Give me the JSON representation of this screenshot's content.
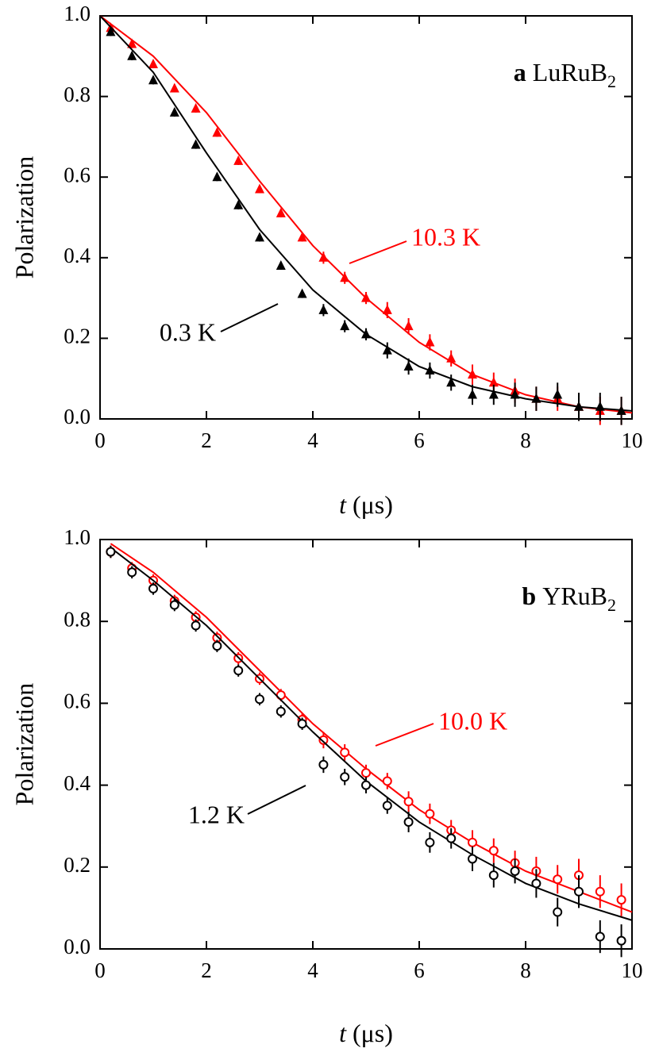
{
  "chart_data": [
    {
      "type": "scatter",
      "panel_label": "a",
      "title": "LuRuB",
      "title_subscript": "2",
      "xlabel_symbol": "t",
      "xlabel_unit": "(μs)",
      "ylabel": "Polarization",
      "marker": "triangle",
      "xlim": [
        0,
        10
      ],
      "xticks": [
        0,
        2,
        4,
        6,
        8,
        10
      ],
      "ylim": [
        0,
        1
      ],
      "yticks": [
        {
          "value": 0,
          "label": "0.0"
        },
        {
          "value": 0.2,
          "label": "0.2"
        },
        {
          "value": 0.4,
          "label": "0.4"
        },
        {
          "value": 0.6,
          "label": "0.6"
        },
        {
          "value": 0.8,
          "label": "0.8"
        },
        {
          "value": 1,
          "label": "1.0"
        }
      ],
      "x": [
        0.2,
        0.6,
        1.0,
        1.4,
        1.8,
        2.2,
        2.6,
        3.0,
        3.4,
        3.8,
        4.2,
        4.6,
        5.0,
        5.4,
        5.8,
        6.2,
        6.6,
        7.0,
        7.4,
        7.8,
        8.2,
        8.6,
        9.0,
        9.4,
        9.8
      ],
      "fit_x": [
        0,
        1,
        2,
        3,
        4,
        5,
        6,
        7,
        8,
        9,
        10
      ],
      "series": [
        {
          "name": "10.3 K",
          "color": "#ff0000",
          "values": [
            0.97,
            0.93,
            0.88,
            0.82,
            0.77,
            0.71,
            0.64,
            0.57,
            0.51,
            0.45,
            0.4,
            0.35,
            0.3,
            0.27,
            0.23,
            0.19,
            0.15,
            0.11,
            0.09,
            0.07,
            0.05,
            0.05,
            0.03,
            0.02,
            0.02
          ],
          "errors": [
            0.01,
            0.01,
            0.01,
            0.01,
            0.01,
            0.01,
            0.01,
            0.01,
            0.01,
            0.01,
            0.015,
            0.015,
            0.015,
            0.02,
            0.02,
            0.02,
            0.02,
            0.025,
            0.025,
            0.03,
            0.03,
            0.03,
            0.035,
            0.035,
            0.035
          ],
          "fit": [
            1.0,
            0.9,
            0.76,
            0.59,
            0.43,
            0.3,
            0.19,
            0.11,
            0.06,
            0.03,
            0.015
          ]
        },
        {
          "name": "0.3 K",
          "color": "#000000",
          "values": [
            0.96,
            0.9,
            0.84,
            0.76,
            0.68,
            0.6,
            0.53,
            0.45,
            0.38,
            0.31,
            0.27,
            0.23,
            0.21,
            0.17,
            0.13,
            0.12,
            0.09,
            0.06,
            0.06,
            0.06,
            0.05,
            0.06,
            0.03,
            0.03,
            0.02
          ],
          "errors": [
            0.01,
            0.01,
            0.01,
            0.01,
            0.01,
            0.01,
            0.01,
            0.01,
            0.01,
            0.01,
            0.015,
            0.015,
            0.015,
            0.02,
            0.02,
            0.02,
            0.02,
            0.025,
            0.025,
            0.03,
            0.03,
            0.03,
            0.035,
            0.035,
            0.035
          ],
          "fit": [
            1.0,
            0.86,
            0.66,
            0.47,
            0.32,
            0.21,
            0.13,
            0.08,
            0.05,
            0.03,
            0.02
          ]
        }
      ]
    },
    {
      "type": "scatter",
      "panel_label": "b",
      "title": "YRuB",
      "title_subscript": "2",
      "xlabel_symbol": "t",
      "xlabel_unit": "(μs)",
      "ylabel": "Polarization",
      "marker": "circle-open",
      "xlim": [
        0,
        10
      ],
      "xticks": [
        0,
        2,
        4,
        6,
        8,
        10
      ],
      "ylim": [
        0,
        1
      ],
      "yticks": [
        {
          "value": 0,
          "label": "0.0"
        },
        {
          "value": 0.2,
          "label": "0.2"
        },
        {
          "value": 0.4,
          "label": "0.4"
        },
        {
          "value": 0.6,
          "label": "0.6"
        },
        {
          "value": 0.8,
          "label": "0.8"
        },
        {
          "value": 1,
          "label": "1.0"
        }
      ],
      "x": [
        0.2,
        0.6,
        1.0,
        1.4,
        1.8,
        2.2,
        2.6,
        3.0,
        3.4,
        3.8,
        4.2,
        4.6,
        5.0,
        5.4,
        5.8,
        6.2,
        6.6,
        7.0,
        7.4,
        7.8,
        8.2,
        8.6,
        9.0,
        9.4,
        9.8
      ],
      "fit_x": [
        0.2,
        1,
        2,
        3,
        4,
        5,
        6,
        7,
        8,
        9,
        10
      ],
      "series": [
        {
          "name": "10.0 K",
          "color": "#ff0000",
          "values": [
            0.97,
            0.93,
            0.9,
            0.85,
            0.81,
            0.76,
            0.71,
            0.66,
            0.62,
            0.56,
            0.51,
            0.48,
            0.43,
            0.41,
            0.36,
            0.33,
            0.29,
            0.26,
            0.24,
            0.21,
            0.19,
            0.17,
            0.18,
            0.14,
            0.12
          ],
          "errors": [
            0.015,
            0.015,
            0.015,
            0.015,
            0.015,
            0.015,
            0.015,
            0.015,
            0.015,
            0.015,
            0.02,
            0.02,
            0.02,
            0.02,
            0.025,
            0.025,
            0.025,
            0.03,
            0.03,
            0.03,
            0.035,
            0.035,
            0.04,
            0.04,
            0.04
          ],
          "fit": [
            0.99,
            0.92,
            0.81,
            0.68,
            0.55,
            0.44,
            0.34,
            0.26,
            0.19,
            0.14,
            0.09
          ]
        },
        {
          "name": "1.2 K",
          "color": "#000000",
          "values": [
            0.97,
            0.92,
            0.88,
            0.84,
            0.79,
            0.74,
            0.68,
            0.61,
            0.58,
            0.55,
            0.45,
            0.42,
            0.4,
            0.35,
            0.31,
            0.26,
            0.27,
            0.22,
            0.18,
            0.19,
            0.16,
            0.09,
            0.14,
            0.03,
            0.02
          ],
          "errors": [
            0.015,
            0.015,
            0.015,
            0.015,
            0.015,
            0.015,
            0.015,
            0.015,
            0.015,
            0.015,
            0.02,
            0.02,
            0.02,
            0.02,
            0.025,
            0.025,
            0.025,
            0.03,
            0.03,
            0.03,
            0.035,
            0.035,
            0.04,
            0.04,
            0.04
          ],
          "fit": [
            0.98,
            0.9,
            0.79,
            0.66,
            0.53,
            0.41,
            0.31,
            0.23,
            0.16,
            0.11,
            0.07
          ]
        }
      ]
    }
  ]
}
